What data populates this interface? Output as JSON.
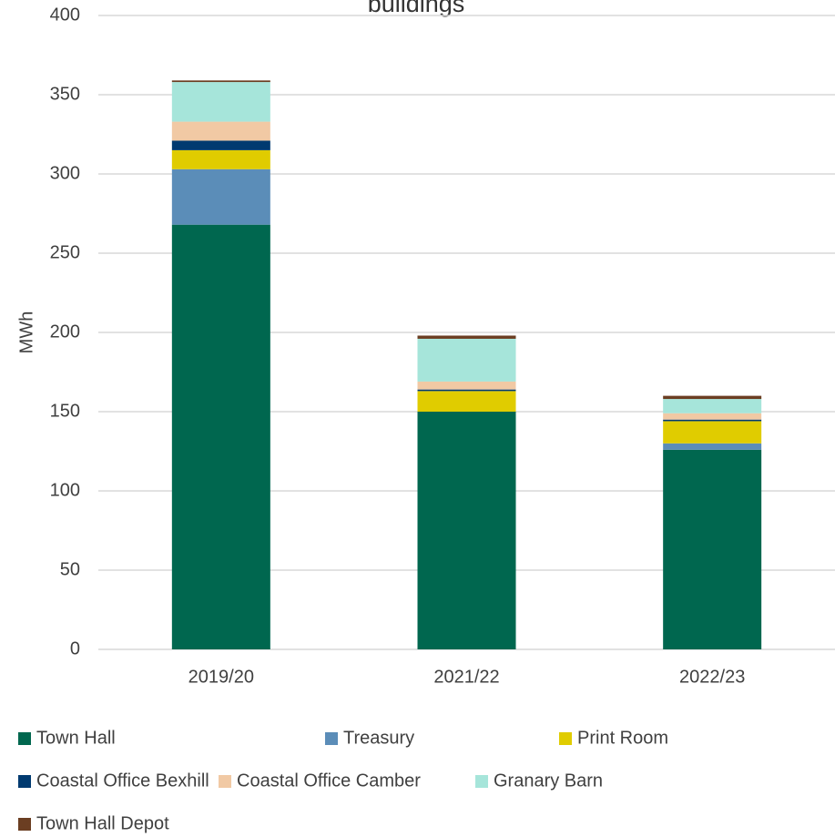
{
  "chart_data": {
    "type": "stacked_bar",
    "title": "buildings",
    "ylabel": "MWh",
    "categories": [
      "2019/20",
      "2021/22",
      "2022/23"
    ],
    "series": [
      {
        "name": "Town Hall",
        "color": "#00674f",
        "values": [
          268,
          150,
          126
        ]
      },
      {
        "name": "Treasury",
        "color": "#5b8db8",
        "values": [
          35,
          0,
          4
        ]
      },
      {
        "name": "Print Room",
        "color": "#e0cc00",
        "values": [
          12,
          13,
          14
        ]
      },
      {
        "name": "Coastal Office Bexhill",
        "color": "#003a70",
        "values": [
          6,
          1,
          1
        ]
      },
      {
        "name": "Coastal Office Camber",
        "color": "#f1c9a4",
        "values": [
          12,
          5,
          4
        ]
      },
      {
        "name": "Granary Barn",
        "color": "#a6e5da",
        "values": [
          25,
          27,
          9
        ]
      },
      {
        "name": "Town Hall Depot",
        "color": "#6b3e22",
        "values": [
          1,
          2,
          2
        ]
      }
    ],
    "ylim": [
      0,
      400
    ],
    "yticks": [
      0,
      50,
      100,
      150,
      200,
      250,
      300,
      350,
      400
    ],
    "grid": true
  }
}
